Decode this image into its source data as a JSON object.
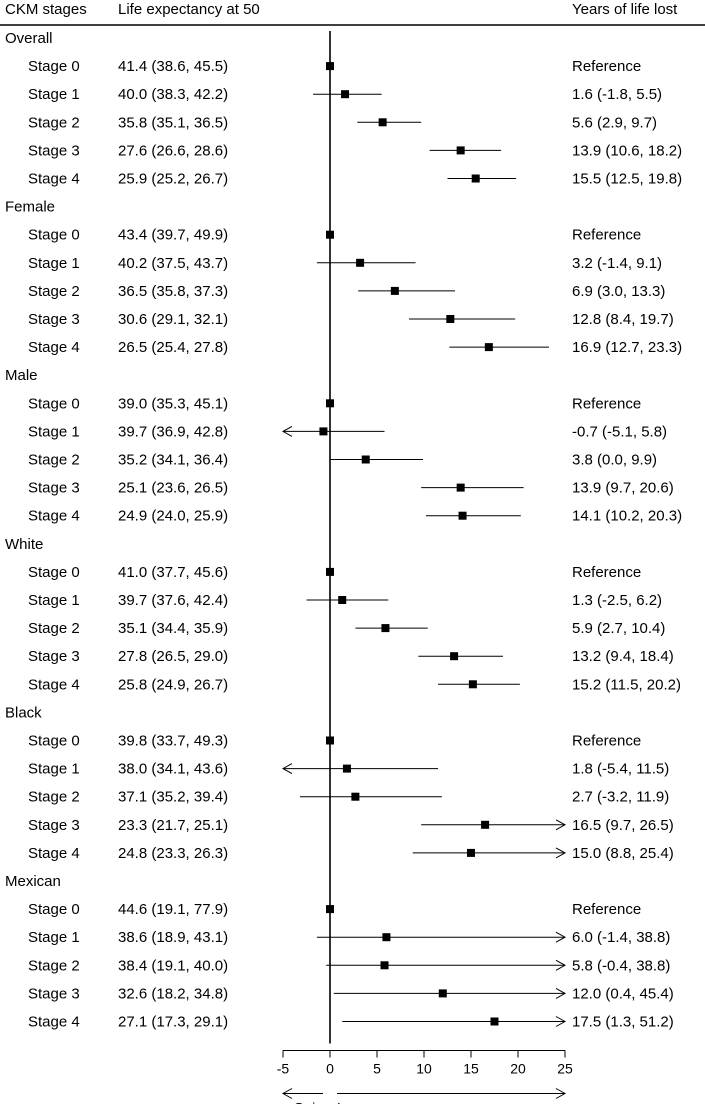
{
  "chart_data": {
    "type": "forest",
    "columns": {
      "stage": "CKM stages",
      "le": "Life expectancy at 50",
      "yll": "Years of life lost"
    },
    "x_axis": {
      "range": [
        -5,
        25
      ],
      "ticks": [
        -5,
        0,
        5,
        10,
        15,
        20,
        25
      ],
      "tick_labels": [
        "-5",
        "0",
        "5",
        "10",
        "15",
        "20",
        "25"
      ],
      "gain_label": "Gain",
      "loss_label": "Loss"
    },
    "groups": [
      {
        "name": "Overall",
        "rows": [
          {
            "stage": "Stage 0",
            "le": "41.4 (38.6, 45.5)",
            "yll": "Reference",
            "est": 0,
            "lo": null,
            "hi": null
          },
          {
            "stage": "Stage 1",
            "le": "40.0 (38.3, 42.2)",
            "yll": "1.6 (-1.8, 5.5)",
            "est": 1.6,
            "lo": -1.8,
            "hi": 5.5
          },
          {
            "stage": "Stage 2",
            "le": "35.8 (35.1, 36.5)",
            "yll": "5.6 (2.9, 9.7)",
            "est": 5.6,
            "lo": 2.9,
            "hi": 9.7
          },
          {
            "stage": "Stage 3",
            "le": "27.6 (26.6, 28.6)",
            "yll": "13.9 (10.6, 18.2)",
            "est": 13.9,
            "lo": 10.6,
            "hi": 18.2
          },
          {
            "stage": "Stage 4",
            "le": "25.9 (25.2, 26.7)",
            "yll": "15.5 (12.5, 19.8)",
            "est": 15.5,
            "lo": 12.5,
            "hi": 19.8
          }
        ]
      },
      {
        "name": "Female",
        "rows": [
          {
            "stage": "Stage 0",
            "le": "43.4 (39.7, 49.9)",
            "yll": "Reference",
            "est": 0,
            "lo": null,
            "hi": null
          },
          {
            "stage": "Stage 1",
            "le": "40.2 (37.5, 43.7)",
            "yll": "3.2 (-1.4, 9.1)",
            "est": 3.2,
            "lo": -1.4,
            "hi": 9.1
          },
          {
            "stage": "Stage 2",
            "le": "36.5 (35.8, 37.3)",
            "yll": "6.9 (3.0, 13.3)",
            "est": 6.9,
            "lo": 3.0,
            "hi": 13.3
          },
          {
            "stage": "Stage 3",
            "le": "30.6 (29.1, 32.1)",
            "yll": "12.8 (8.4, 19.7)",
            "est": 12.8,
            "lo": 8.4,
            "hi": 19.7
          },
          {
            "stage": "Stage 4",
            "le": "26.5 (25.4, 27.8)",
            "yll": "16.9 (12.7, 23.3)",
            "est": 16.9,
            "lo": 12.7,
            "hi": 23.3
          }
        ]
      },
      {
        "name": "Male",
        "rows": [
          {
            "stage": "Stage 0",
            "le": "39.0 (35.3, 45.1)",
            "yll": "Reference",
            "est": 0,
            "lo": null,
            "hi": null
          },
          {
            "stage": "Stage 1",
            "le": "39.7 (36.9, 42.8)",
            "yll": "-0.7 (-5.1, 5.8)",
            "est": -0.7,
            "lo": -5.1,
            "hi": 5.8
          },
          {
            "stage": "Stage 2",
            "le": "35.2 (34.1, 36.4)",
            "yll": "3.8 (0.0, 9.9)",
            "est": 3.8,
            "lo": 0.0,
            "hi": 9.9
          },
          {
            "stage": "Stage 3",
            "le": "25.1 (23.6, 26.5)",
            "yll": "13.9 (9.7, 20.6)",
            "est": 13.9,
            "lo": 9.7,
            "hi": 20.6
          },
          {
            "stage": "Stage 4",
            "le": "24.9 (24.0, 25.9)",
            "yll": "14.1 (10.2, 20.3)",
            "est": 14.1,
            "lo": 10.2,
            "hi": 20.3
          }
        ]
      },
      {
        "name": "White",
        "rows": [
          {
            "stage": "Stage 0",
            "le": "41.0 (37.7, 45.6)",
            "yll": "Reference",
            "est": 0,
            "lo": null,
            "hi": null
          },
          {
            "stage": "Stage 1",
            "le": "39.7 (37.6, 42.4)",
            "yll": "1.3 (-2.5, 6.2)",
            "est": 1.3,
            "lo": -2.5,
            "hi": 6.2
          },
          {
            "stage": "Stage 2",
            "le": "35.1 (34.4, 35.9)",
            "yll": "5.9 (2.7, 10.4)",
            "est": 5.9,
            "lo": 2.7,
            "hi": 10.4
          },
          {
            "stage": "Stage 3",
            "le": "27.8 (26.5, 29.0)",
            "yll": "13.2 (9.4, 18.4)",
            "est": 13.2,
            "lo": 9.4,
            "hi": 18.4
          },
          {
            "stage": "Stage 4",
            "le": "25.8 (24.9, 26.7)",
            "yll": "15.2 (11.5, 20.2)",
            "est": 15.2,
            "lo": 11.5,
            "hi": 20.2
          }
        ]
      },
      {
        "name": "Black",
        "rows": [
          {
            "stage": "Stage 0",
            "le": "39.8 (33.7, 49.3)",
            "yll": "Reference",
            "est": 0,
            "lo": null,
            "hi": null
          },
          {
            "stage": "Stage 1",
            "le": "38.0 (34.1, 43.6)",
            "yll": "1.8 (-5.4, 11.5)",
            "est": 1.8,
            "lo": -5.4,
            "hi": 11.5
          },
          {
            "stage": "Stage 2",
            "le": "37.1 (35.2, 39.4)",
            "yll": "2.7 (-3.2, 11.9)",
            "est": 2.7,
            "lo": -3.2,
            "hi": 11.9
          },
          {
            "stage": "Stage 3",
            "le": "23.3 (21.7, 25.1)",
            "yll": "16.5 (9.7, 26.5)",
            "est": 16.5,
            "lo": 9.7,
            "hi": 26.5
          },
          {
            "stage": "Stage 4",
            "le": "24.8 (23.3, 26.3)",
            "yll": "15.0 (8.8, 25.4)",
            "est": 15.0,
            "lo": 8.8,
            "hi": 25.4
          }
        ]
      },
      {
        "name": "Mexican",
        "rows": [
          {
            "stage": "Stage 0",
            "le": "44.6 (19.1, 77.9)",
            "yll": "Reference",
            "est": 0,
            "lo": null,
            "hi": null
          },
          {
            "stage": "Stage 1",
            "le": "38.6 (18.9, 43.1)",
            "yll": "6.0 (-1.4, 38.8)",
            "est": 6.0,
            "lo": -1.4,
            "hi": 38.8
          },
          {
            "stage": "Stage 2",
            "le": "38.4 (19.1, 40.0)",
            "yll": "5.8 (-0.4, 38.8)",
            "est": 5.8,
            "lo": -0.4,
            "hi": 38.8
          },
          {
            "stage": "Stage 3",
            "le": "32.6 (18.2, 34.8)",
            "yll": "12.0 (0.4, 45.4)",
            "est": 12.0,
            "lo": 0.4,
            "hi": 45.4
          },
          {
            "stage": "Stage 4",
            "le": "27.1 (17.3, 29.1)",
            "yll": "17.5 (1.3, 51.2)",
            "est": 17.5,
            "lo": 1.3,
            "hi": 51.2
          }
        ]
      }
    ]
  }
}
